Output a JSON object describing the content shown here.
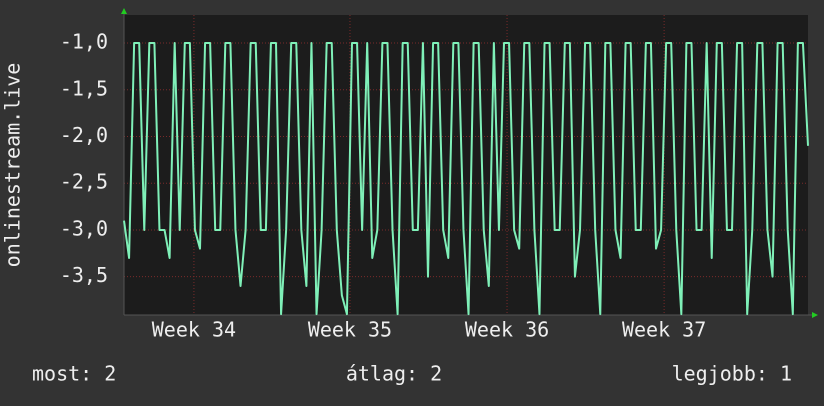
{
  "chart_data": {
    "type": "line",
    "y_label": "onlinestream.live",
    "series": [
      {
        "name": "onlinestream.live",
        "color": "#7ff0b8",
        "values": [
          -2.9,
          -3.3,
          -1.0,
          -1.0,
          -3.0,
          -1.0,
          -1.0,
          -3.0,
          -3.0,
          -3.3,
          -1.0,
          -3.0,
          -1.0,
          -1.0,
          -3.0,
          -3.2,
          -1.0,
          -1.0,
          -3.0,
          -3.0,
          -1.0,
          -1.0,
          -3.0,
          -3.6,
          -3.0,
          -1.0,
          -1.0,
          -3.0,
          -3.0,
          -1.0,
          -1.0,
          -3.9,
          -3.0,
          -1.0,
          -1.0,
          -3.0,
          -3.6,
          -1.0,
          -3.9,
          -3.0,
          -1.0,
          -1.0,
          -3.0,
          -3.7,
          -3.9,
          -1.0,
          -1.0,
          -3.0,
          -1.0,
          -3.3,
          -3.0,
          -1.0,
          -1.0,
          -3.0,
          -3.9,
          -1.0,
          -1.0,
          -3.0,
          -3.0,
          -1.0,
          -3.5,
          -1.0,
          -1.0,
          -3.0,
          -3.3,
          -1.0,
          -1.0,
          -3.0,
          -3.9,
          -1.0,
          -1.0,
          -3.0,
          -3.6,
          -1.0,
          -3.0,
          -1.0,
          -1.0,
          -3.0,
          -3.2,
          -1.0,
          -1.0,
          -3.0,
          -3.9,
          -1.0,
          -1.0,
          -3.0,
          -3.0,
          -1.0,
          -1.0,
          -3.5,
          -3.0,
          -1.0,
          -1.0,
          -3.0,
          -3.9,
          -1.0,
          -1.0,
          -3.0,
          -3.3,
          -1.0,
          -1.0,
          -3.0,
          -3.0,
          -1.0,
          -1.0,
          -3.2,
          -3.0,
          -1.0,
          -1.0,
          -3.0,
          -3.9,
          -1.0,
          -1.0,
          -3.0,
          -3.0,
          -1.0,
          -3.3,
          -1.0,
          -1.0,
          -3.0,
          -3.0,
          -1.0,
          -1.0,
          -3.9,
          -3.0,
          -1.0,
          -1.0,
          -3.0,
          -3.5,
          -1.0,
          -1.0,
          -3.0,
          -3.9,
          -1.0,
          -1.0,
          -2.1
        ]
      }
    ],
    "xlim": [
      0,
      135
    ],
    "xticks": [
      {
        "value": 13.8,
        "label": "Week 34"
      },
      {
        "value": 44.6,
        "label": "Week 35"
      },
      {
        "value": 75.6,
        "label": "Week 36"
      },
      {
        "value": 106.6,
        "label": "Week 37"
      }
    ],
    "ylim": [
      -3.91,
      -0.7
    ],
    "yticks": [
      {
        "value": -1.0,
        "label": "-1,0"
      },
      {
        "value": -1.5,
        "label": "-1,5"
      },
      {
        "value": -2.0,
        "label": "-2,0"
      },
      {
        "value": -2.5,
        "label": "-2,5"
      },
      {
        "value": -3.0,
        "label": "-3,0"
      },
      {
        "value": -3.5,
        "label": "-3,5"
      }
    ],
    "grid": true,
    "footer": [
      "most: 2",
      "átlag: 2",
      "legjobb: 1"
    ]
  }
}
